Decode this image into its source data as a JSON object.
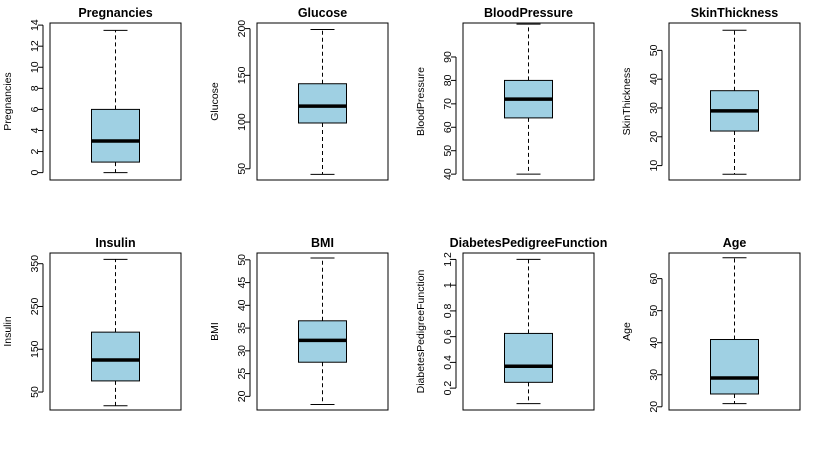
{
  "chart_data": [
    {
      "type": "boxplot",
      "title": "Pregnancies",
      "ylabel": "Pregnancies",
      "ylim": [
        -0.7,
        14.2
      ],
      "yticks": [
        0,
        2,
        4,
        6,
        8,
        10,
        12,
        14
      ],
      "stats": {
        "min": 0,
        "q1": 1,
        "median": 3,
        "q3": 6,
        "max": 13.5
      },
      "fill_color": "#9fd0e3"
    },
    {
      "type": "boxplot",
      "title": "Glucose",
      "ylabel": "Glucose",
      "ylim": [
        38,
        206
      ],
      "yticks": [
        50,
        100,
        150,
        200
      ],
      "stats": {
        "min": 44,
        "q1": 99,
        "median": 117,
        "q3": 141,
        "max": 199
      },
      "fill_color": "#9fd0e3"
    },
    {
      "type": "boxplot",
      "title": "BloodPressure",
      "ylabel": "BloodPressure",
      "ylim": [
        37.5,
        104.5
      ],
      "yticks": [
        40,
        50,
        60,
        70,
        80,
        90
      ],
      "stats": {
        "min": 40,
        "q1": 64,
        "median": 72,
        "q3": 80,
        "max": 104
      },
      "fill_color": "#9fd0e3"
    },
    {
      "type": "boxplot",
      "title": "SkinThickness",
      "ylabel": "SkinThickness",
      "ylim": [
        5,
        59.5
      ],
      "yticks": [
        10,
        20,
        30,
        40,
        50
      ],
      "stats": {
        "min": 7,
        "q1": 22,
        "median": 29,
        "q3": 36,
        "max": 57
      },
      "fill_color": "#9fd0e3"
    },
    {
      "type": "boxplot",
      "title": "Insulin",
      "ylabel": "Insulin",
      "ylim": [
        8,
        375
      ],
      "yticks": [
        50,
        150,
        250,
        350
      ],
      "stats": {
        "min": 18,
        "q1": 76,
        "median": 125,
        "q3": 190,
        "max": 360
      },
      "fill_color": "#9fd0e3"
    },
    {
      "type": "boxplot",
      "title": "BMI",
      "ylabel": "BMI",
      "ylim": [
        17,
        51.5
      ],
      "yticks": [
        20,
        25,
        30,
        35,
        40,
        45,
        50
      ],
      "stats": {
        "min": 18.2,
        "q1": 27.5,
        "median": 32.3,
        "q3": 36.6,
        "max": 50.4
      },
      "fill_color": "#9fd0e3"
    },
    {
      "type": "boxplot",
      "title": "DiabetesPedigreeFunction",
      "ylabel": "DiabetesPedigreeFunction",
      "ylim": [
        0.03,
        1.25
      ],
      "yticks": [
        0.2,
        0.4,
        0.6,
        0.8,
        1.0,
        1.2
      ],
      "stats": {
        "min": 0.08,
        "q1": 0.245,
        "median": 0.37,
        "q3": 0.625,
        "max": 1.2
      },
      "fill_color": "#9fd0e3"
    },
    {
      "type": "boxplot",
      "title": "Age",
      "ylabel": "Age",
      "ylim": [
        19,
        68
      ],
      "yticks": [
        20,
        30,
        40,
        50,
        60
      ],
      "stats": {
        "min": 21,
        "q1": 24,
        "median": 29,
        "q3": 41,
        "max": 66.5
      },
      "fill_color": "#9fd0e3"
    }
  ]
}
